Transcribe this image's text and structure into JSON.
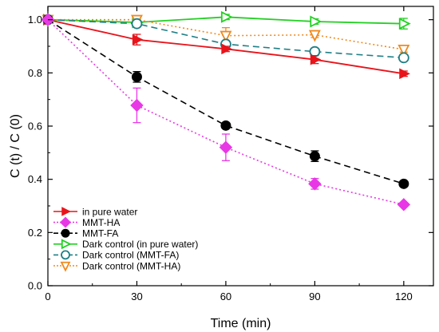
{
  "chart_data": {
    "type": "line",
    "title": "",
    "xlabel": "Time (min)",
    "ylabel": "C (t) / C (0)",
    "xlim": [
      0,
      130
    ],
    "ylim": [
      0.0,
      1.05
    ],
    "xticks": [
      0,
      30,
      60,
      90,
      120
    ],
    "yticks": [
      0.0,
      0.2,
      0.4,
      0.6,
      0.8,
      1.0
    ],
    "xtick_labels": [
      "0",
      "30",
      "60",
      "90",
      "120"
    ],
    "ytick_labels": [
      "0.0",
      "0.2",
      "0.4",
      "0.6",
      "0.8",
      "1.0"
    ],
    "grid": false,
    "legend_position": "bottom-left",
    "series": [
      {
        "name": "in pure water",
        "x": [
          0,
          30,
          60,
          90,
          120
        ],
        "y": [
          1.0,
          0.925,
          0.89,
          0.85,
          0.797
        ],
        "err": [
          0,
          0.02,
          0.01,
          0.015,
          0.01
        ],
        "color": "#e8141b",
        "line": "solid",
        "marker": "triangle-right",
        "filled": true
      },
      {
        "name": "MMT-HA",
        "x": [
          0,
          30,
          60,
          90,
          120
        ],
        "y": [
          1.0,
          0.678,
          0.52,
          0.383,
          0.305
        ],
        "err": [
          0,
          0.065,
          0.05,
          0.02,
          0.008
        ],
        "color": "#e838e6",
        "line": "dotted",
        "marker": "diamond",
        "filled": true
      },
      {
        "name": "MMT-FA",
        "x": [
          0,
          30,
          60,
          90,
          120
        ],
        "y": [
          1.0,
          0.785,
          0.602,
          0.487,
          0.383
        ],
        "err": [
          0,
          0.02,
          0.01,
          0.02,
          0.008
        ],
        "color": "#000000",
        "line": "dashed",
        "marker": "circle",
        "filled": true
      },
      {
        "name": "Dark control (in pure water)",
        "x": [
          0,
          30,
          60,
          90,
          120
        ],
        "y": [
          1.0,
          0.99,
          1.01,
          0.993,
          0.985
        ],
        "err": [
          0,
          0.01,
          0.01,
          0.01,
          0.02
        ],
        "color": "#22d022",
        "line": "solid",
        "marker": "triangle-right",
        "filled": false
      },
      {
        "name": "Dark control (MMT-FA)",
        "x": [
          0,
          30,
          60,
          90,
          120
        ],
        "y": [
          1.0,
          0.985,
          0.908,
          0.88,
          0.857
        ],
        "err": [
          0,
          0.01,
          0.01,
          0.01,
          0.008
        ],
        "color": "#1f7f86",
        "line": "dashed",
        "marker": "circle",
        "filled": false
      },
      {
        "name": "Dark control (MMT-HA)",
        "x": [
          0,
          30,
          60,
          90,
          120
        ],
        "y": [
          1.0,
          1.0,
          0.94,
          0.943,
          0.888
        ],
        "err": [
          0,
          0.015,
          0.03,
          0.01,
          0.01
        ],
        "color": "#f08a1e",
        "line": "dotted",
        "marker": "triangle-down",
        "filled": false
      }
    ]
  }
}
